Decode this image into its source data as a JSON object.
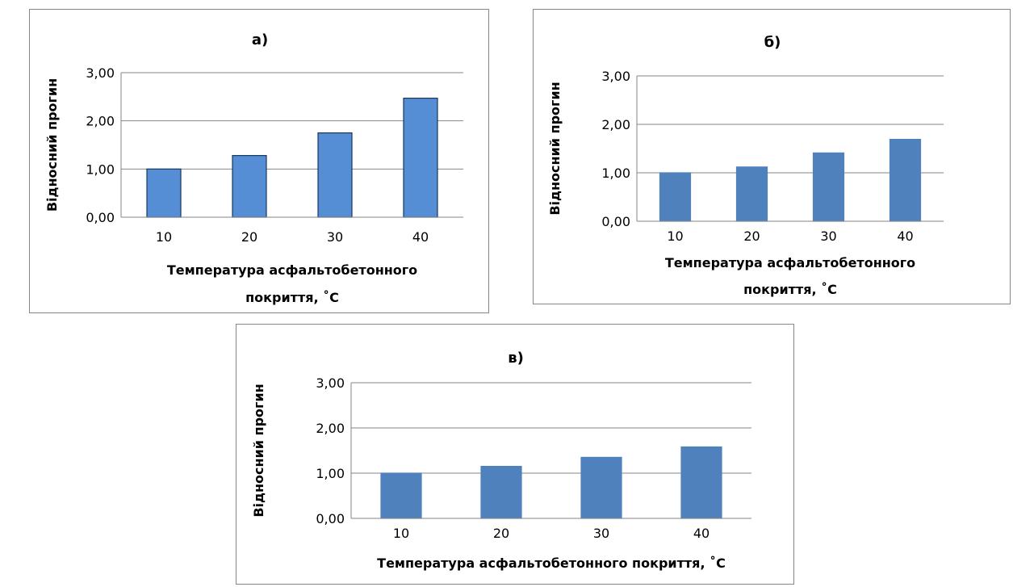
{
  "chart_data": [
    {
      "type": "bar",
      "title": "а)",
      "categories": [
        "10",
        "20",
        "30",
        "40"
      ],
      "values": [
        1.0,
        1.28,
        1.75,
        2.47
      ],
      "ylabel": "Відносний прогин",
      "xlabel_lines": [
        "Температура асфальтобетонного",
        "покриття, ˚С"
      ],
      "yticks": [
        "0,00",
        "1,00",
        "2,00",
        "3,00"
      ],
      "ylim": [
        0,
        3
      ],
      "grid": true,
      "legend": false,
      "colors": {
        "bar": "#558ED5",
        "bar_edge": "#17375E"
      }
    },
    {
      "type": "bar",
      "title": "б)",
      "categories": [
        "10",
        "20",
        "30",
        "40"
      ],
      "values": [
        1.0,
        1.12,
        1.41,
        1.69
      ],
      "ylabel": "Відносний прогин",
      "xlabel_lines": [
        "Температура асфальтобетонного",
        "покриття, ˚С"
      ],
      "yticks": [
        "0,00",
        "1,00",
        "2,00",
        "3,00"
      ],
      "ylim": [
        0,
        3
      ],
      "grid": true,
      "legend": false,
      "colors": {
        "bar": "#4F81BD",
        "bar_edge": "#4F81BD"
      }
    },
    {
      "type": "bar",
      "title": "в)",
      "categories": [
        "10",
        "20",
        "30",
        "40"
      ],
      "values": [
        1.0,
        1.15,
        1.35,
        1.58
      ],
      "ylabel": "Відносний прогин",
      "xlabel_lines": [
        "Температура асфальтобетонного покриття, ˚С"
      ],
      "yticks": [
        "0,00",
        "1,00",
        "2,00",
        "3,00"
      ],
      "ylim": [
        0,
        3
      ],
      "grid": true,
      "legend": false,
      "colors": {
        "bar": "#4F81BD",
        "bar_edge": "#4F81BD"
      }
    }
  ]
}
